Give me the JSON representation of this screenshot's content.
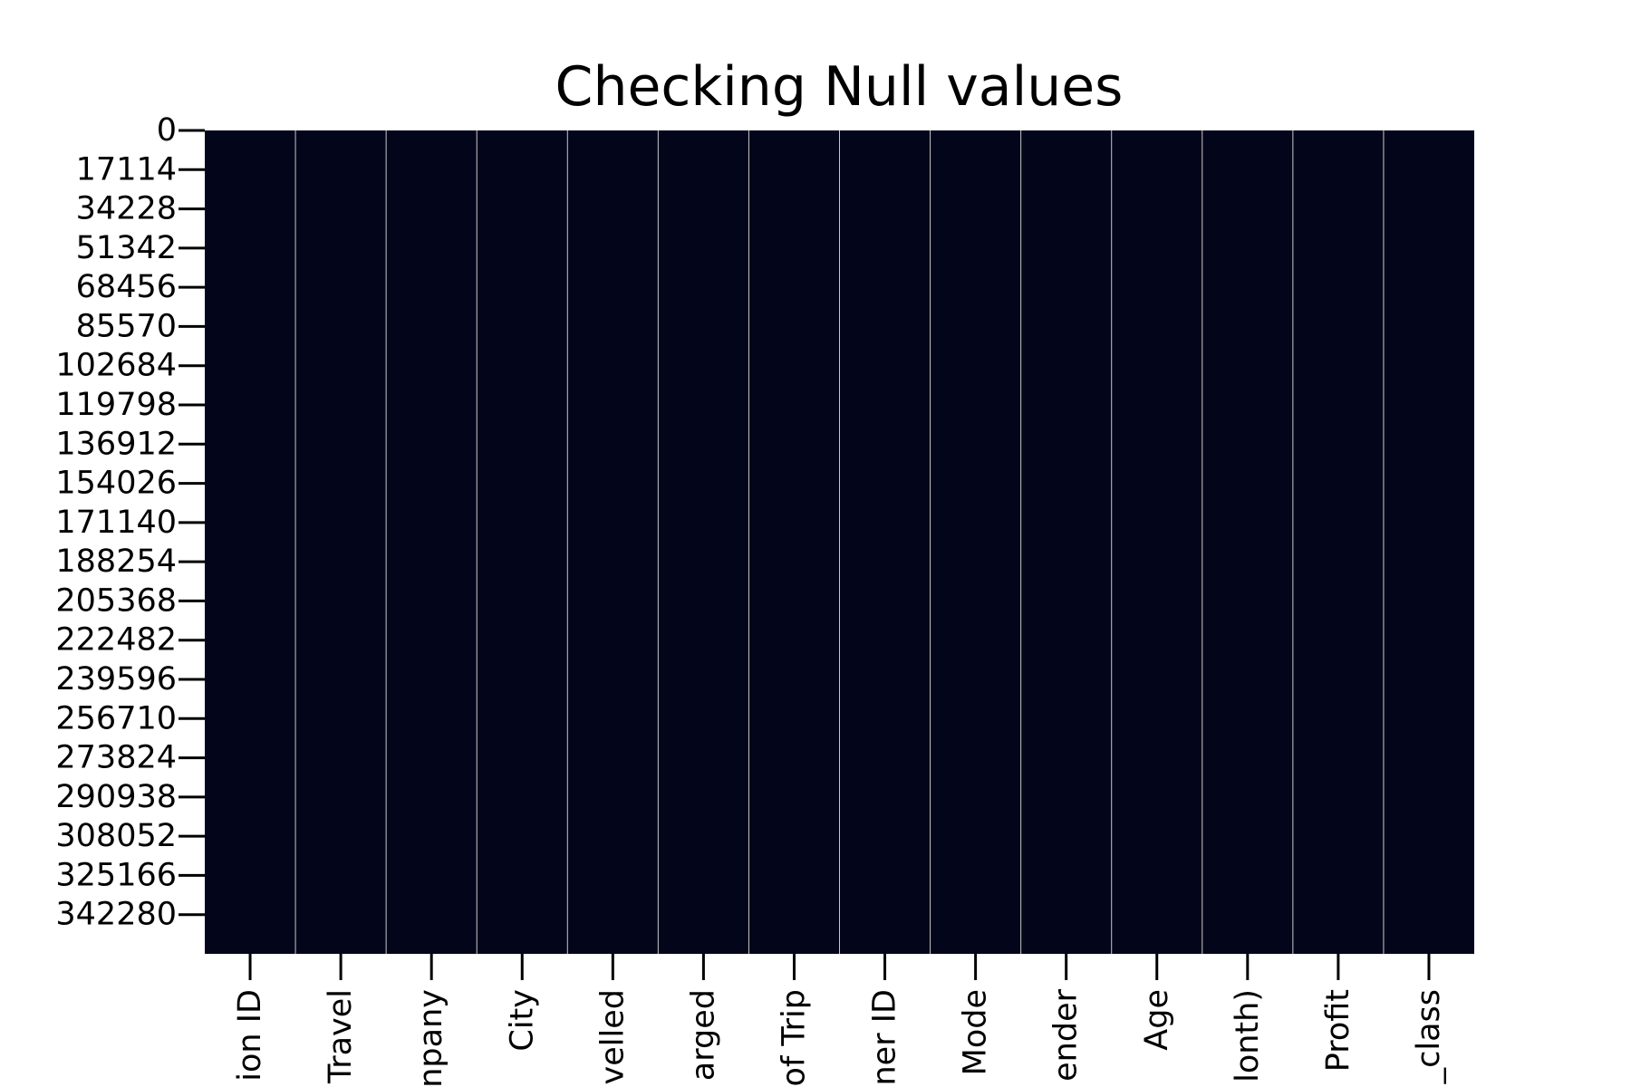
{
  "chart_data": {
    "type": "heatmap",
    "title": "Checking Null values",
    "xlabel": "",
    "ylabel": "",
    "colors": {
      "cell": "#03061a",
      "separator": "#c8c8c8",
      "axis": "#000000",
      "background": "#ffffff"
    },
    "colorbar": false,
    "columns": [
      "ion ID",
      "Travel",
      "npany",
      "City",
      "velled",
      "arged",
      "of Trip",
      "ner ID",
      "Mode",
      "ender",
      "Age",
      "lonth)",
      "Profit",
      "_class"
    ],
    "row_count": 359392,
    "yticks": [
      0,
      17114,
      34228,
      51342,
      68456,
      85570,
      102684,
      119798,
      136912,
      154026,
      171140,
      188254,
      205368,
      222482,
      239596,
      256710,
      273824,
      290938,
      308052,
      325166,
      342280
    ],
    "ytick_labels": [
      "0",
      "17114",
      "34228",
      "51342",
      "68456",
      "85570",
      "102684",
      "119798",
      "136912",
      "154026",
      "171140",
      "188254",
      "205368",
      "222482",
      "239596",
      "256710",
      "273824",
      "290938",
      "308052",
      "325166",
      "342280"
    ],
    "null_counts": [
      0,
      0,
      0,
      0,
      0,
      0,
      0,
      0,
      0,
      0,
      0,
      0,
      0,
      0
    ]
  }
}
